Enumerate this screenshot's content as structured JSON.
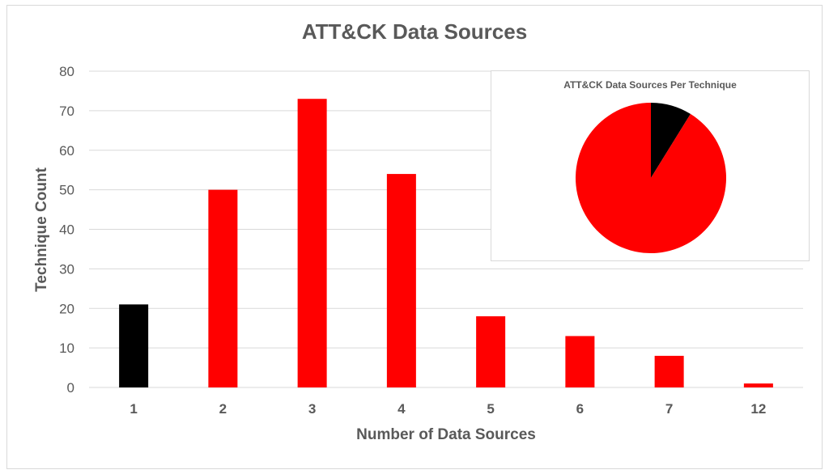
{
  "chart_data": [
    {
      "type": "bar",
      "title": "ATT&CK Data Sources",
      "xlabel": "Number of Data Sources",
      "ylabel": "Technique Count",
      "categories": [
        "1",
        "2",
        "3",
        "4",
        "5",
        "6",
        "7",
        "12"
      ],
      "values": [
        21,
        50,
        73,
        54,
        18,
        13,
        8,
        1
      ],
      "bar_colors": [
        "#000000",
        "#ff0000",
        "#ff0000",
        "#ff0000",
        "#ff0000",
        "#ff0000",
        "#ff0000",
        "#ff0000"
      ],
      "ylim": [
        0,
        80
      ],
      "yticks": [
        0,
        10,
        20,
        30,
        40,
        50,
        60,
        70,
        80
      ],
      "grid": true,
      "gridline_color": "#d9d9d9",
      "text_color": "#595959"
    },
    {
      "type": "pie",
      "title": "ATT&CK Data Sources Per Technique",
      "values": [
        21,
        217
      ],
      "colors": [
        "#000000",
        "#ff0000"
      ],
      "placement": "top-right inset"
    }
  ]
}
